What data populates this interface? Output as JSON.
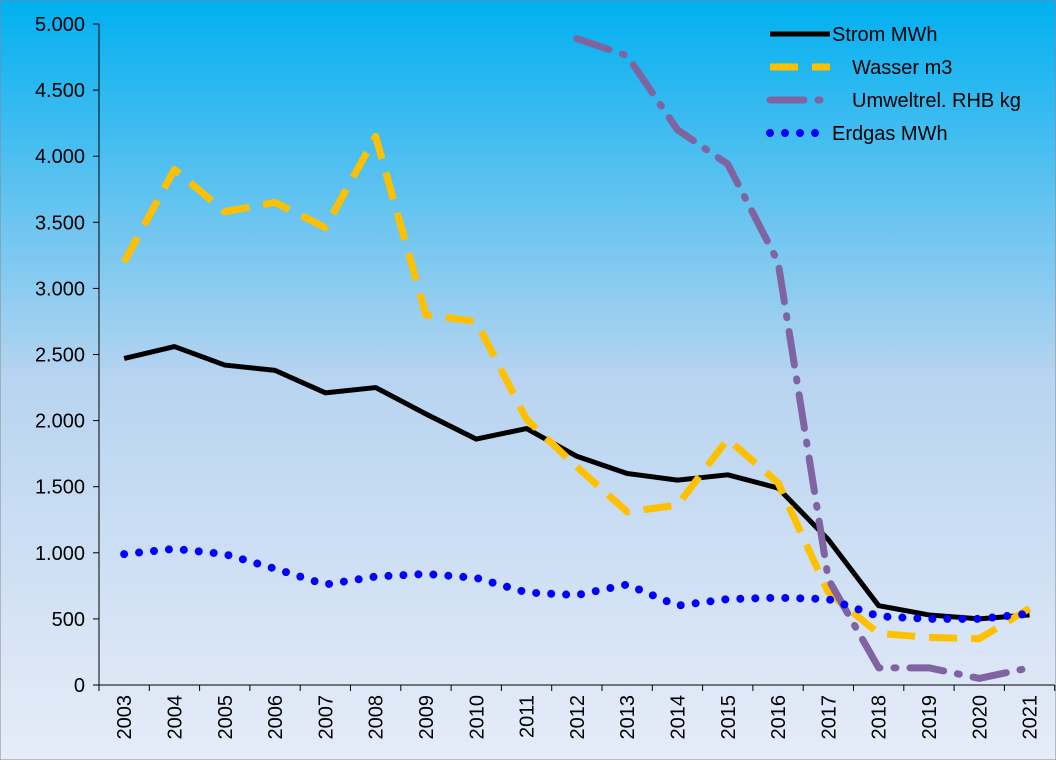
{
  "chart_data": {
    "type": "line",
    "categories": [
      "2003",
      "2004",
      "2005",
      "2006",
      "2007",
      "2008",
      "2009",
      "2010",
      "2011",
      "2012",
      "2013",
      "2014",
      "2015",
      "2016",
      "2017",
      "2018",
      "2019",
      "2020",
      "2021"
    ],
    "series": [
      {
        "name": "Strom MWh",
        "color": "#000000",
        "dash": "solid",
        "values": [
          2470,
          2560,
          2420,
          2380,
          2210,
          2250,
          2050,
          1860,
          1940,
          1730,
          1600,
          1550,
          1590,
          1490,
          1100,
          600,
          530,
          500,
          530
        ]
      },
      {
        "name": "Wasser m3",
        "color": "#ffc000",
        "dash": "dash",
        "values": [
          3200,
          3900,
          3580,
          3650,
          3460,
          4150,
          2800,
          2750,
          2010,
          1650,
          1310,
          1360,
          1860,
          1530,
          700,
          390,
          360,
          350,
          580
        ]
      },
      {
        "name": "Umweltrel. RHB kg",
        "color": "#8064a2",
        "dash": "dashdot",
        "values": [
          null,
          null,
          null,
          null,
          null,
          null,
          null,
          null,
          null,
          4890,
          4760,
          4200,
          3940,
          3200,
          800,
          130,
          130,
          50,
          130
        ]
      },
      {
        "name": "Erdgas MWh",
        "color": "#0000ff",
        "dash": "dot",
        "values": [
          990,
          1030,
          990,
          880,
          760,
          820,
          840,
          810,
          700,
          680,
          760,
          600,
          650,
          660,
          650,
          520,
          500,
          500,
          540
        ]
      }
    ],
    "ylim": [
      0,
      5000
    ],
    "yticks": [
      0,
      500,
      {
        "value": 1000,
        "label": "1.000"
      },
      {
        "value": 1500,
        "label": "1.500"
      },
      {
        "value": 2000,
        "label": "2.000"
      },
      {
        "value": 2500,
        "label": "2.500"
      },
      {
        "value": 3000,
        "label": "3.000"
      },
      {
        "value": 3500,
        "label": "3.500"
      },
      {
        "value": 4000,
        "label": "4.000"
      },
      {
        "value": 4500,
        "label": "4.500"
      },
      {
        "value": 5000,
        "label": "5.000"
      }
    ],
    "legend": "top-right"
  }
}
